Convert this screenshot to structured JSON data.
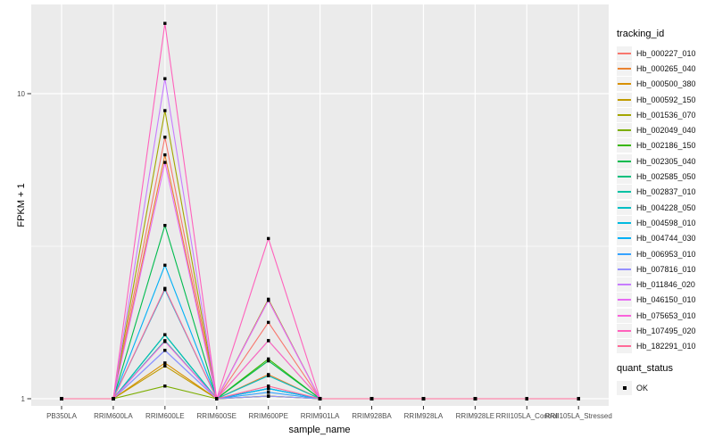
{
  "theme": {
    "panel_bg": "#EBEBEB",
    "grid_color": "#FFFFFF",
    "tick_text_color": "#4D4D4D",
    "tick_mark_color": "#333333",
    "axis_title_color": "#000000",
    "legend_key_bg": "#F2F2F2",
    "point_color": "#000000"
  },
  "chart_data": {
    "type": "line",
    "title": "",
    "xlabel": "sample_name",
    "ylabel": "FPKM + 1",
    "y_scale": "log10",
    "y_ticks": [
      1,
      10
    ],
    "y_minor_ticks": [
      3.162
    ],
    "ylim": [
      0.95,
      19.6
    ],
    "grid": true,
    "legend_position": "right",
    "categories": [
      "PB350LA",
      "RRIM600LA",
      "RRIM600LE",
      "RRIM600SE",
      "RRIM600PE",
      "RRIM901LA",
      "RRIM928BA",
      "RRIM928LA",
      "RRIM928LE",
      "RRII105LA_Control",
      "RRII105LA_Stressed"
    ],
    "series": [
      {
        "name": "Hb_000227_010",
        "color": "#F8766D",
        "values": [
          1,
          1,
          7.2,
          1,
          1.78,
          1,
          1,
          1,
          1,
          1,
          1
        ]
      },
      {
        "name": "Hb_000265_040",
        "color": "#EA8331",
        "values": [
          1,
          1,
          6.3,
          1,
          1.2,
          1,
          1,
          1,
          1,
          1,
          1
        ]
      },
      {
        "name": "Hb_000500_380",
        "color": "#D89000",
        "values": [
          1,
          1,
          1.31,
          1,
          1.55,
          1,
          1,
          1,
          1,
          1,
          1
        ]
      },
      {
        "name": "Hb_000592_150",
        "color": "#C09B00",
        "values": [
          1,
          1,
          1.28,
          1,
          1.02,
          1,
          1,
          1,
          1,
          1,
          1
        ]
      },
      {
        "name": "Hb_001536_070",
        "color": "#A3A500",
        "values": [
          1,
          1,
          8.8,
          1,
          2.12,
          1,
          1,
          1,
          1,
          1,
          1
        ]
      },
      {
        "name": "Hb_002049_040",
        "color": "#7CAE00",
        "values": [
          1,
          1,
          1.1,
          1,
          1.02,
          1,
          1,
          1,
          1,
          1,
          1
        ]
      },
      {
        "name": "Hb_002186_150",
        "color": "#39B600",
        "values": [
          1,
          1,
          1.62,
          1,
          1.35,
          1,
          1,
          1,
          1,
          1,
          1
        ]
      },
      {
        "name": "Hb_002305_040",
        "color": "#00BB4E",
        "values": [
          1,
          1,
          3.7,
          1,
          1.33,
          1,
          1,
          1,
          1,
          1,
          1
        ]
      },
      {
        "name": "Hb_002585_050",
        "color": "#00BF7D",
        "values": [
          1,
          1,
          1.62,
          1,
          1.08,
          1,
          1,
          1,
          1,
          1,
          1
        ]
      },
      {
        "name": "Hb_002837_010",
        "color": "#00C1A3",
        "values": [
          1,
          1,
          1.55,
          1,
          1.08,
          1,
          1,
          1,
          1,
          1,
          1
        ]
      },
      {
        "name": "Hb_004228_050",
        "color": "#00BFC4",
        "values": [
          1,
          1,
          1.62,
          1,
          1.19,
          1,
          1,
          1,
          1,
          1,
          1
        ]
      },
      {
        "name": "Hb_004598_010",
        "color": "#00BAE0",
        "values": [
          1,
          1,
          2.28,
          1,
          1.08,
          1,
          1,
          1,
          1,
          1,
          1
        ]
      },
      {
        "name": "Hb_004744_030",
        "color": "#00B0F6",
        "values": [
          1,
          1,
          2.74,
          1,
          1.08,
          1,
          1,
          1,
          1,
          1,
          1
        ]
      },
      {
        "name": "Hb_006953_010",
        "color": "#35A2FF",
        "values": [
          1,
          1,
          1.44,
          1,
          1.05,
          1,
          1,
          1,
          1,
          1,
          1
        ]
      },
      {
        "name": "Hb_007816_010",
        "color": "#9590FF",
        "values": [
          1,
          1,
          1.44,
          1,
          1.02,
          1,
          1,
          1,
          1,
          1,
          1
        ]
      },
      {
        "name": "Hb_011846_020",
        "color": "#C77CFF",
        "values": [
          1,
          1,
          11.2,
          1,
          2.1,
          1,
          1,
          1,
          1,
          1,
          1
        ]
      },
      {
        "name": "Hb_046150_010",
        "color": "#E76BF3",
        "values": [
          1,
          1,
          5.95,
          1,
          2.1,
          1,
          1,
          1,
          1,
          1,
          1
        ]
      },
      {
        "name": "Hb_075653_010",
        "color": "#FA62DB",
        "values": [
          1,
          1,
          1.54,
          1,
          1.55,
          1,
          1,
          1,
          1,
          1,
          1
        ]
      },
      {
        "name": "Hb_107495_020",
        "color": "#FF62BC",
        "values": [
          1,
          1,
          17.0,
          1,
          3.35,
          1,
          1,
          1,
          1,
          1,
          1
        ]
      },
      {
        "name": "Hb_182291_010",
        "color": "#FF6A98",
        "values": [
          1,
          1,
          2.3,
          1,
          1.1,
          1,
          1,
          1,
          1,
          1,
          1
        ]
      }
    ],
    "point_marker": "square"
  },
  "legend": {
    "tracking_title": "tracking_id",
    "quant_title": "quant_status",
    "quant_items": [
      {
        "label": "OK",
        "marker": "square"
      }
    ]
  }
}
